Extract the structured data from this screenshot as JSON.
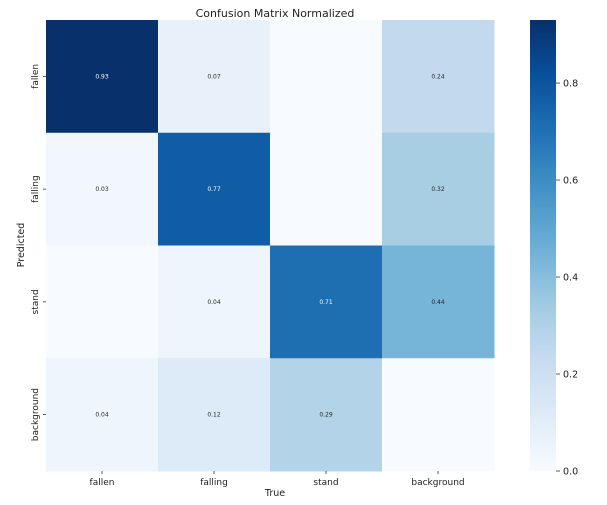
{
  "chart_data": {
    "type": "heatmap",
    "title": "Confusion Matrix Normalized",
    "xlabel": "True",
    "ylabel": "Predicted",
    "x_categories": [
      "fallen",
      "falling",
      "stand",
      "background"
    ],
    "y_categories": [
      "fallen",
      "falling",
      "stand",
      "background"
    ],
    "values": [
      [
        0.93,
        0.07,
        null,
        0.24
      ],
      [
        0.03,
        0.77,
        null,
        0.32
      ],
      [
        null,
        0.04,
        0.71,
        0.44
      ],
      [
        0.04,
        0.12,
        0.29,
        null
      ]
    ],
    "colorscale": "Blues",
    "vmin": 0.0,
    "vmax": 0.93,
    "colorbar_ticks": [
      "0.0",
      "0.2",
      "0.4",
      "0.6",
      "0.8"
    ],
    "colorbar_tick_values": [
      0.0,
      0.2,
      0.4,
      0.6,
      0.8
    ]
  }
}
